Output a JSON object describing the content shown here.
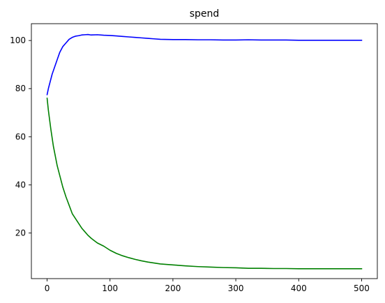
{
  "chart_data": {
    "type": "line",
    "title": "spend",
    "xlabel": "",
    "ylabel": "",
    "xlim": [
      -25,
      525
    ],
    "ylim": [
      1,
      107
    ],
    "x_ticks": [
      0,
      100,
      200,
      300,
      400,
      500
    ],
    "y_ticks": [
      20,
      40,
      60,
      80,
      100
    ],
    "grid": false,
    "legend": "none",
    "series": [
      {
        "color": "#0000ff",
        "points": [
          [
            0,
            77.5
          ],
          [
            2,
            80
          ],
          [
            5,
            83
          ],
          [
            8,
            86
          ],
          [
            12,
            89
          ],
          [
            16,
            92
          ],
          [
            20,
            95
          ],
          [
            25,
            97.5
          ],
          [
            30,
            99
          ],
          [
            35,
            100.5
          ],
          [
            40,
            101.3
          ],
          [
            45,
            101.8
          ],
          [
            50,
            102
          ],
          [
            55,
            102.3
          ],
          [
            60,
            102.4
          ],
          [
            65,
            102.5
          ],
          [
            70,
            102.3
          ],
          [
            80,
            102.4
          ],
          [
            90,
            102.2
          ],
          [
            100,
            102.1
          ],
          [
            110,
            101.9
          ],
          [
            120,
            101.7
          ],
          [
            130,
            101.5
          ],
          [
            140,
            101.3
          ],
          [
            150,
            101.1
          ],
          [
            160,
            100.9
          ],
          [
            170,
            100.7
          ],
          [
            180,
            100.5
          ],
          [
            200,
            100.4
          ],
          [
            220,
            100.4
          ],
          [
            240,
            100.3
          ],
          [
            260,
            100.3
          ],
          [
            280,
            100.2
          ],
          [
            300,
            100.2
          ],
          [
            320,
            100.3
          ],
          [
            340,
            100.2
          ],
          [
            360,
            100.2
          ],
          [
            380,
            100.2
          ],
          [
            400,
            100.1
          ],
          [
            420,
            100.1
          ],
          [
            440,
            100.1
          ],
          [
            460,
            100.1
          ],
          [
            480,
            100.1
          ],
          [
            500,
            100.1
          ]
        ]
      },
      {
        "color": "#008000",
        "points": [
          [
            0,
            76
          ],
          [
            2,
            71
          ],
          [
            4,
            67
          ],
          [
            6,
            63
          ],
          [
            8,
            59.5
          ],
          [
            10,
            56
          ],
          [
            13,
            52
          ],
          [
            16,
            48
          ],
          [
            20,
            44
          ],
          [
            25,
            39
          ],
          [
            30,
            35
          ],
          [
            35,
            31.5
          ],
          [
            40,
            28
          ],
          [
            45,
            26
          ],
          [
            50,
            24
          ],
          [
            55,
            22
          ],
          [
            60,
            20.5
          ],
          [
            65,
            19
          ],
          [
            70,
            17.8
          ],
          [
            75,
            16.8
          ],
          [
            80,
            15.8
          ],
          [
            90,
            14.5
          ],
          [
            100,
            12.8
          ],
          [
            110,
            11.5
          ],
          [
            120,
            10.5
          ],
          [
            130,
            9.7
          ],
          [
            140,
            9
          ],
          [
            150,
            8.4
          ],
          [
            160,
            7.9
          ],
          [
            170,
            7.5
          ],
          [
            180,
            7.1
          ],
          [
            200,
            6.7
          ],
          [
            220,
            6.3
          ],
          [
            240,
            6
          ],
          [
            260,
            5.8
          ],
          [
            280,
            5.6
          ],
          [
            300,
            5.5
          ],
          [
            320,
            5.3
          ],
          [
            340,
            5.3
          ],
          [
            360,
            5.2
          ],
          [
            380,
            5.2
          ],
          [
            400,
            5.1
          ],
          [
            420,
            5.1
          ],
          [
            440,
            5.1
          ],
          [
            460,
            5.1
          ],
          [
            480,
            5.1
          ],
          [
            500,
            5.1
          ]
        ]
      }
    ]
  }
}
